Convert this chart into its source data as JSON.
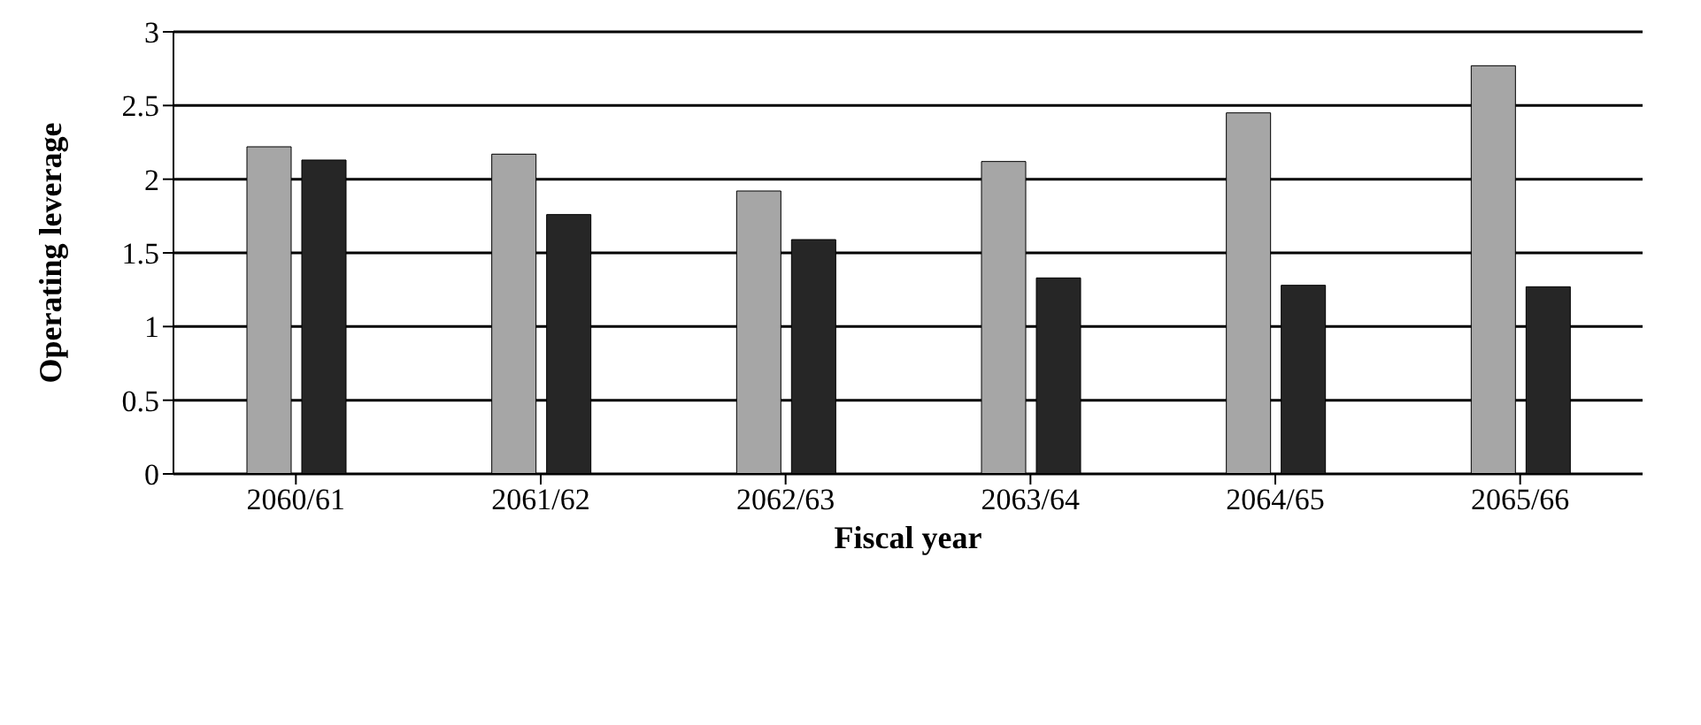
{
  "chart_data": {
    "type": "bar",
    "xlabel": "Fiscal year",
    "ylabel": "Operating leverage",
    "categories": [
      "2060/61",
      "2061/62",
      "2062/63",
      "2063/64",
      "2064/65",
      "2065/66"
    ],
    "series": [
      {
        "color": "#a6a6a6",
        "values": [
          2.22,
          2.17,
          1.92,
          2.12,
          2.45,
          2.77
        ]
      },
      {
        "color": "#262626",
        "values": [
          2.13,
          1.76,
          1.59,
          1.33,
          1.28,
          1.27
        ]
      }
    ],
    "ylim": [
      0,
      3
    ],
    "yticks": [
      0,
      0.5,
      1,
      1.5,
      2,
      2.5,
      3
    ],
    "grid": "y",
    "legend": false
  }
}
